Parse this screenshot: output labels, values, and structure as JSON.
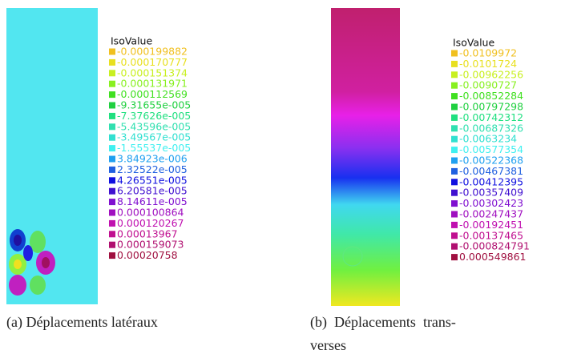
{
  "panels": [
    {
      "legend_title": "IsoValue",
      "legend_labels": [
        "-0.000199882",
        "-0.000170777",
        "-0.000151374",
        "-0.000131971",
        "-0.000112569",
        "-9.31655e-005",
        "-7.37626e-005",
        "-5.43596e-005",
        "-3.49567e-005",
        "-1.55537e-005",
        "3.84923e-006",
        "2.32522e-005",
        "4.26551e-005",
        "6.20581e-005",
        "8.14611e-005",
        "0.000100864",
        "0.000120267",
        "0.00013967",
        "0.000159073",
        "0.00020758"
      ],
      "caption_lines": [
        "(a) Déplacements latéraux"
      ]
    },
    {
      "legend_title": "IsoValue",
      "legend_labels": [
        "-0.0109972",
        "-0.0101724",
        "-0.00962256",
        "-0.0090727",
        "-0.00852284",
        "-0.00797298",
        "-0.00742312",
        "-0.00687326",
        "-0.0063234",
        "-0.00577354",
        "-0.00522368",
        "-0.00467381",
        "-0.00412395",
        "-0.00357409",
        "-0.00302423",
        "-0.00247437",
        "-0.00192451",
        "-0.00137465",
        "-0.000824791",
        "0.000549861"
      ],
      "caption_lines": [
        "(b)  Déplacements  trans-",
        "verses"
      ]
    }
  ]
}
